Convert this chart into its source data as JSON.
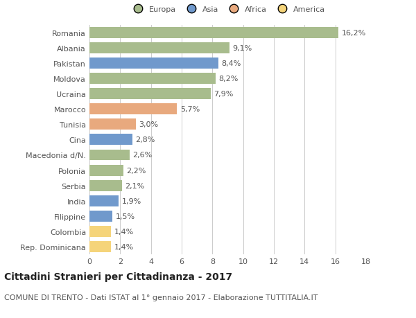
{
  "categories": [
    "Rep. Dominicana",
    "Colombia",
    "Filippine",
    "India",
    "Serbia",
    "Polonia",
    "Macedonia d/N.",
    "Cina",
    "Tunisia",
    "Marocco",
    "Ucraina",
    "Moldova",
    "Pakistan",
    "Albania",
    "Romania"
  ],
  "values": [
    1.4,
    1.4,
    1.5,
    1.9,
    2.1,
    2.2,
    2.6,
    2.8,
    3.0,
    5.7,
    7.9,
    8.2,
    8.4,
    9.1,
    16.2
  ],
  "labels": [
    "1,4%",
    "1,4%",
    "1,5%",
    "1,9%",
    "2,1%",
    "2,2%",
    "2,6%",
    "2,8%",
    "3,0%",
    "5,7%",
    "7,9%",
    "8,2%",
    "8,4%",
    "9,1%",
    "16,2%"
  ],
  "colors": [
    "#f5d47a",
    "#f5d47a",
    "#7099cc",
    "#7099cc",
    "#a8bc8d",
    "#a8bc8d",
    "#a8bc8d",
    "#7099cc",
    "#e8a97e",
    "#e8a97e",
    "#a8bc8d",
    "#a8bc8d",
    "#7099cc",
    "#a8bc8d",
    "#a8bc8d"
  ],
  "legend_labels": [
    "Europa",
    "Asia",
    "Africa",
    "America"
  ],
  "legend_colors": [
    "#a8bc8d",
    "#7099cc",
    "#e8a97e",
    "#f5d47a"
  ],
  "title_bold": "Cittadini Stranieri per Cittadinanza - 2017",
  "subtitle": "COMUNE DI TRENTO - Dati ISTAT al 1° gennaio 2017 - Elaborazione TUTTITALIA.IT",
  "xlim": [
    0,
    18
  ],
  "xticks": [
    0,
    2,
    4,
    6,
    8,
    10,
    12,
    14,
    16,
    18
  ],
  "background_color": "#ffffff",
  "bar_height": 0.72,
  "grid_color": "#cccccc",
  "label_fontsize": 8.0,
  "tick_fontsize": 8.0,
  "title_fontsize": 10,
  "subtitle_fontsize": 8,
  "text_color": "#555555",
  "title_color": "#222222"
}
